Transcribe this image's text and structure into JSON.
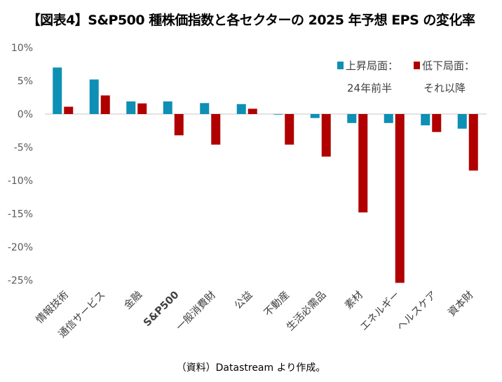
{
  "title": "【図表4】S&P500 種株価指数と各セクターの 2025 年予想 EPS の変化率",
  "footer": "（資料）Datastream より作成。",
  "chart_data": {
    "type": "bar",
    "title": "【図表4】S&P500 種株価指数と各セクターの 2025 年予想 EPS の変化率",
    "categories": [
      "情報技術",
      "通信サービス",
      "金融",
      "S&P500",
      "一般消費財",
      "公益",
      "不動産",
      "生活必需品",
      "素材",
      "エネルギー",
      "ヘルスケア",
      "資本財"
    ],
    "series": [
      {
        "name": "上昇局面：24年前半",
        "legend_line1": "上昇局面：",
        "legend_line2": "24年前半",
        "color": "#0E8FB5",
        "values": [
          7.0,
          5.2,
          1.9,
          1.9,
          1.65,
          1.5,
          -0.05,
          -0.6,
          -1.35,
          -1.35,
          -1.7,
          -2.2
        ]
      },
      {
        "name": "低下局面：それ以降",
        "legend_line1": "低下局面：",
        "legend_line2": "それ以降",
        "color": "#B00000",
        "values": [
          1.1,
          2.8,
          1.6,
          -3.2,
          -4.6,
          0.8,
          -4.6,
          -6.4,
          -14.8,
          -25.4,
          -2.7,
          -8.5
        ]
      }
    ],
    "yticks": [
      "10%",
      "5%",
      "0%",
      "-5%",
      "-10%",
      "-15%",
      "-20%",
      "-25%"
    ],
    "ylim": [
      -25,
      10
    ],
    "unit": "%",
    "grid": false,
    "legend_position": "top-right",
    "bold_category": "S&P500"
  }
}
